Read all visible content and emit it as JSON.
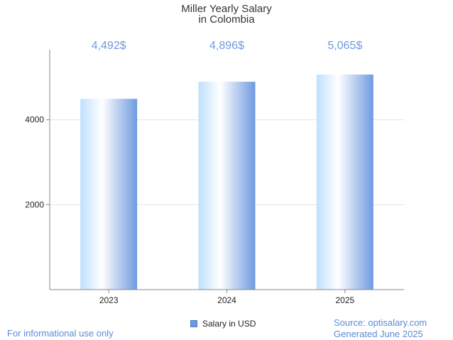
{
  "chart_data": {
    "type": "bar",
    "title": [
      "Miller Yearly Salary",
      "in Colombia"
    ],
    "categories": [
      "2023",
      "2024",
      "2025"
    ],
    "values": [
      4492,
      4896,
      5065
    ],
    "value_labels": [
      "4,492$",
      "4,896$",
      "5,065$"
    ],
    "y_ticks": [
      2000,
      4000
    ],
    "y_tick_labels": [
      "2000",
      "4000"
    ],
    "ylim": [
      0,
      5650
    ],
    "xlabel": "",
    "ylabel": "",
    "grid": true,
    "legend": {
      "position": "bottom-center",
      "entries": [
        "Salary in USD"
      ]
    },
    "series": [
      {
        "name": "Salary in USD",
        "values": [
          4492,
          4896,
          5065
        ]
      }
    ]
  },
  "footer": {
    "disclaimer": "For informational use only",
    "source": "Source: optisalary.com",
    "generated": "Generated June 2025"
  },
  "colors": {
    "bar_light": "#bfe0ff",
    "bar_dark": "#6f9ae0",
    "label": "#6f9ae0",
    "footer": "#5a8ad9"
  }
}
